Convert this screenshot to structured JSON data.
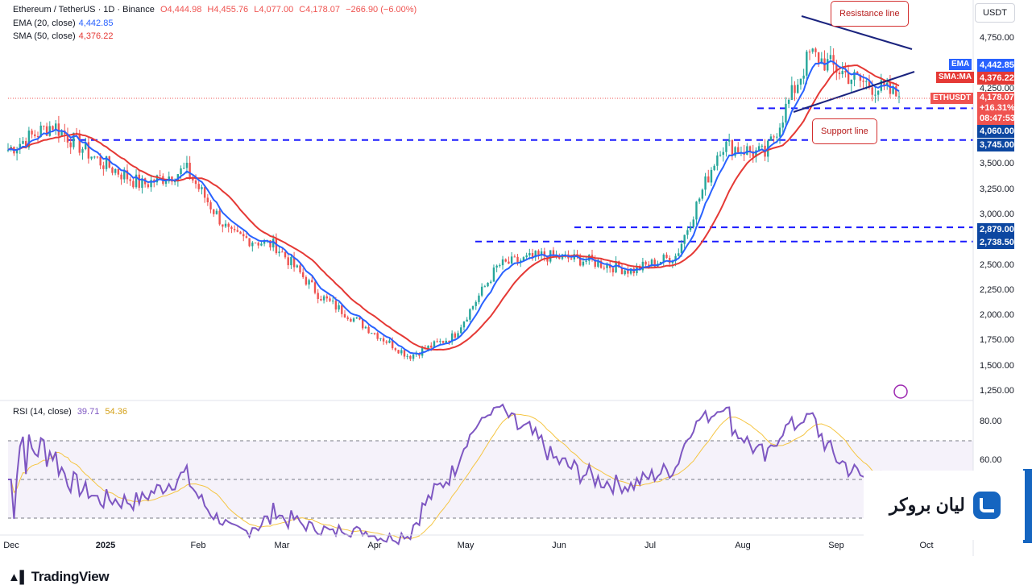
{
  "header": {
    "symbol": "Ethereum / TetherUS · 1D · Binance",
    "o_label": "O",
    "o_value": "4,444.98",
    "h_label": "H",
    "h_value": "4,455.76",
    "l_label": "L",
    "l_value": "4,077.00",
    "c_label": "C",
    "c_value": "4,178.07",
    "change": "−266.90 (−6.00%)",
    "ema_label": "EMA (20, close)",
    "ema_value": "4,442.85",
    "sma_label": "SMA (50, close)",
    "sma_value": "4,376.22"
  },
  "currency_button": "USDT",
  "price_labels": {
    "ema_tag": "EMA",
    "ema": "4,442.85",
    "sma_tag": "SMA:MA",
    "sma": "4,376.22",
    "last_tag": "ETHUSDT",
    "last": "4,178.07",
    "last_change": "+16.31%",
    "countdown": "08:47:53",
    "support_4060": "4,060.00",
    "support_3745": "3,745.00",
    "level_2879": "2,879.00",
    "level_2738": "2,738.50"
  },
  "annotations": {
    "resistance": "Resistance line",
    "support": "Support line"
  },
  "rsi": {
    "label": "RSI (14, close)",
    "value": "39.71",
    "ma_value": "54.36",
    "axis": [
      "80.00",
      "60.00"
    ]
  },
  "footer": {
    "logo": "TradingView"
  },
  "broker_logo_text": "لیان بروکر",
  "colors": {
    "up": "#26a69a",
    "down": "#ef5350",
    "ema": "#2962ff",
    "sma": "#e53935",
    "rsi": "#7e57c2",
    "rsi_ma": "#f5c542",
    "level": "#1a1aff",
    "trendline": "#1a237e"
  },
  "chart_data": {
    "type": "candlestick",
    "title": "Ethereum / TetherUS · 1D · Binance",
    "x_ticks": [
      "Dec",
      "2025",
      "Feb",
      "Mar",
      "Apr",
      "May",
      "Jun",
      "Jul",
      "Aug",
      "Sep",
      "Oct"
    ],
    "y_ticks": [
      "4,750.00",
      "4,250.00",
      "3,500.00",
      "3,250.00",
      "3,000.00",
      "2,500.00",
      "2,250.00",
      "2,000.00",
      "1,750.00",
      "1,500.00",
      "1,250.00"
    ],
    "ylim": [
      1200,
      4950
    ],
    "series_close": [
      {
        "month": "Dec",
        "close": 3650
      },
      {
        "month": "Dec",
        "close": 3900
      },
      {
        "month": "Dec",
        "close": 3550
      },
      {
        "month": "2025",
        "close": 3300
      },
      {
        "month": "2025",
        "close": 3450
      },
      {
        "month": "Feb",
        "close": 2800
      },
      {
        "month": "Feb",
        "close": 2700
      },
      {
        "month": "Mar",
        "close": 2200
      },
      {
        "month": "Mar",
        "close": 1900
      },
      {
        "month": "Apr",
        "close": 1600
      },
      {
        "month": "Apr",
        "close": 1800
      },
      {
        "month": "May",
        "close": 2500
      },
      {
        "month": "May",
        "close": 2600
      },
      {
        "month": "Jun",
        "close": 2550
      },
      {
        "month": "Jun",
        "close": 2450
      },
      {
        "month": "Jul",
        "close": 2600
      },
      {
        "month": "Jul",
        "close": 3700
      },
      {
        "month": "Aug",
        "close": 3600
      },
      {
        "month": "Aug",
        "close": 4600
      },
      {
        "month": "Sep",
        "close": 4350
      },
      {
        "month": "Sep",
        "close": 4178.07
      }
    ],
    "horizontal_levels": [
      4060,
      3745,
      2879,
      2738.5
    ],
    "indicators": [
      "EMA (20, close)",
      "SMA (50, close)",
      "RSI (14, close)"
    ]
  }
}
